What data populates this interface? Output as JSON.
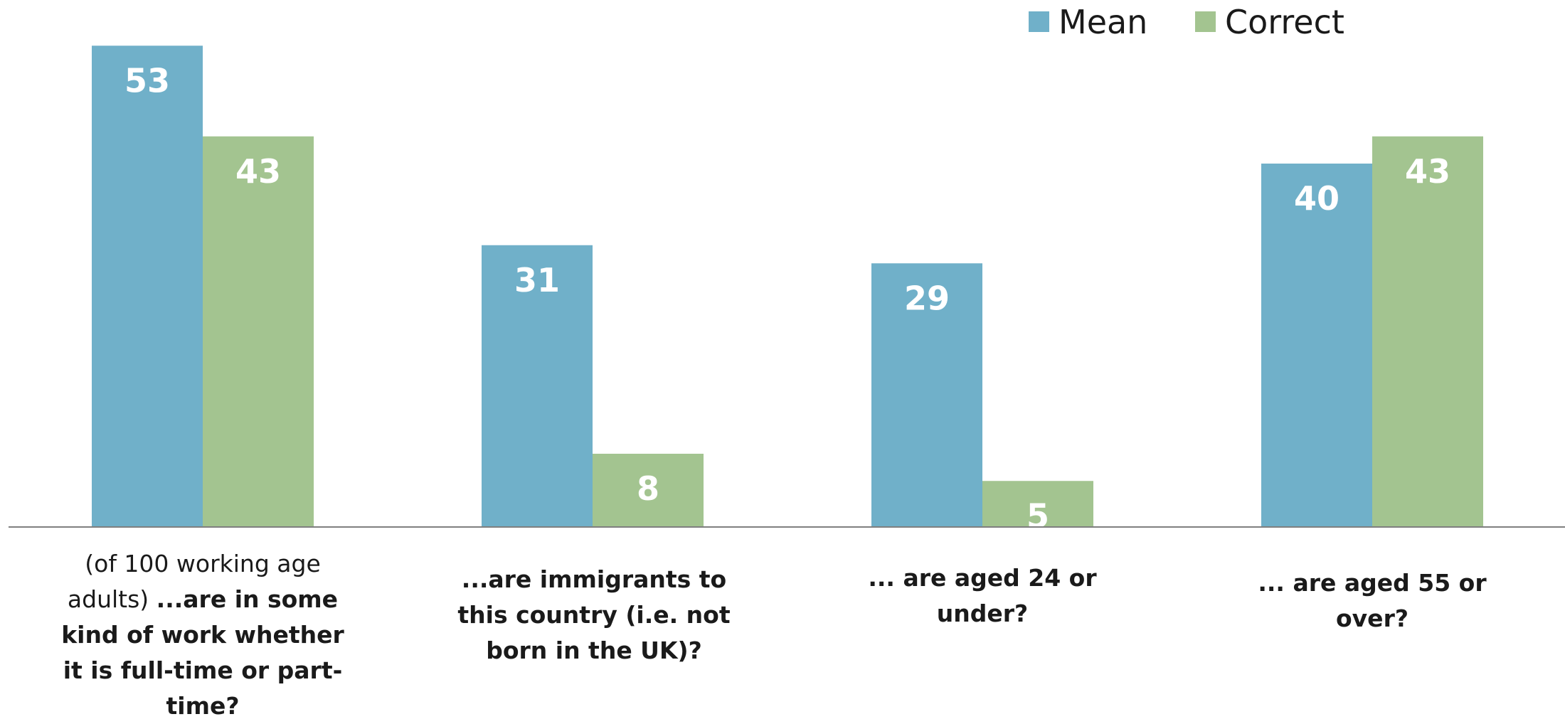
{
  "chart_data": {
    "type": "bar",
    "title": "",
    "xlabel": "",
    "ylabel": "",
    "ylim": [
      0,
      60
    ],
    "grid": false,
    "legend_position": "top-right",
    "categories": [
      {
        "normal": "(of 100 working age adults)",
        "bold": "...are in some kind of work whether it is full-time or part-time?"
      },
      {
        "normal": "",
        "bold": "...are immigrants to this country (i.e. not born in the UK)?"
      },
      {
        "normal": "",
        "bold": "... are aged 24 or under?"
      },
      {
        "normal": "",
        "bold": "... are aged 55 or over?"
      }
    ],
    "series": [
      {
        "name": "Mean",
        "color": "#70b0c9",
        "values": [
          53,
          31,
          29,
          40
        ]
      },
      {
        "name": "Correct",
        "color": "#a3c490",
        "values": [
          43,
          8,
          5,
          43
        ]
      }
    ]
  }
}
